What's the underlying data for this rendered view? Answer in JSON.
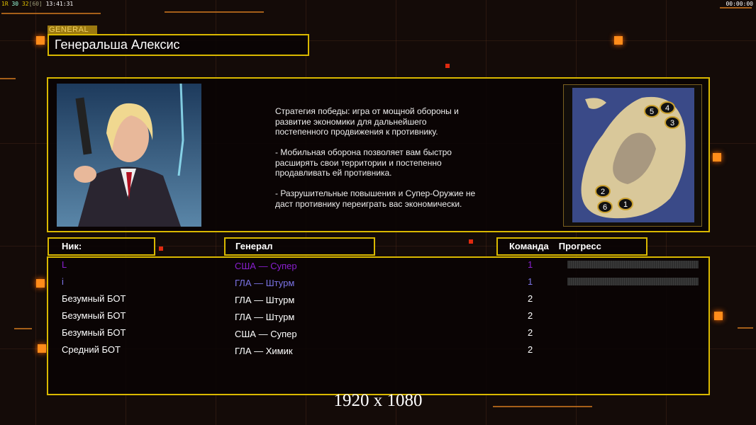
{
  "hud": {
    "fps_label": "1R",
    "fps_a": "30",
    "fps_b": "32",
    "fps_limit": "[60]",
    "time": "13:41:31",
    "timer": "00:00:00"
  },
  "general": {
    "tab_label": "GENERAL",
    "name": "Генеральша Алексис",
    "description": [
      "Стратегия победы: игра от мощной обороны и\n развитие экономики для дальнейшего\n постепенного продвижения к противнику.",
      "- Мобильная оборона позволяет вам быстро\n расширять свои территории и постепенно\n продавливать ей противника.",
      "- Разрушительные повышения и Супер-Оружие не\n даст противнику переиграть вас экономически."
    ]
  },
  "map": {
    "start_positions": [
      "1",
      "2",
      "3",
      "4",
      "5",
      "6"
    ]
  },
  "columns": {
    "nick": "Ник:",
    "general": "Генерал",
    "team": "Команда",
    "progress": "Прогресс"
  },
  "players": [
    {
      "nick": "L",
      "general": "США — Супер",
      "team": "1",
      "color": "#8a1fd0",
      "progress": 0
    },
    {
      "nick": "i",
      "general": "ГЛА — Штурм",
      "team": "1",
      "color": "#7b74e6",
      "progress": 0
    },
    {
      "nick": "Безумный БОТ",
      "general": "ГЛА — Штурм",
      "team": "2",
      "color": "#ffffff"
    },
    {
      "nick": "Безумный БОТ",
      "general": "ГЛА — Штурм",
      "team": "2",
      "color": "#ffffff"
    },
    {
      "nick": "Безумный БОТ",
      "general": "США — Супер",
      "team": "2",
      "color": "#ffffff"
    },
    {
      "nick": "Средний БОТ",
      "general": "ГЛА — Химик",
      "team": "2",
      "color": "#ffffff"
    }
  ],
  "resolution": "1920 x 1080",
  "colors": {
    "frame": "#d9b800",
    "accent": "#ff8c1a"
  }
}
